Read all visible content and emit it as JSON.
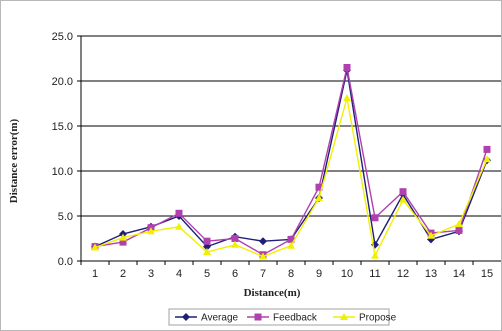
{
  "chart_data": {
    "type": "line",
    "title": "",
    "xlabel": "Distance(m)",
    "ylabel": "Distance error(m)",
    "categories": [
      "1",
      "2",
      "3",
      "4",
      "5",
      "6",
      "7",
      "8",
      "9",
      "10",
      "11",
      "12",
      "13",
      "14",
      "15"
    ],
    "ylim": [
      0,
      25
    ],
    "yticks": [
      "0.0",
      "5.0",
      "10.0",
      "15.0",
      "20.0",
      "25.0"
    ],
    "grid": "horizontal",
    "legend_position": "bottom",
    "series": [
      {
        "name": "Average",
        "marker": "diamond",
        "color": "#1f1f7a",
        "values": [
          1.6,
          3.0,
          3.8,
          5.0,
          1.6,
          2.7,
          2.2,
          2.4,
          7.0,
          21.2,
          1.8,
          7.4,
          2.4,
          3.3,
          11.2
        ]
      },
      {
        "name": "Feedback",
        "marker": "square",
        "color": "#b040b0",
        "values": [
          1.6,
          2.1,
          3.7,
          5.3,
          2.2,
          2.5,
          0.7,
          2.4,
          8.2,
          21.5,
          4.8,
          7.7,
          3.1,
          3.4,
          12.4
        ]
      },
      {
        "name": "Propose",
        "marker": "triangle",
        "color": "#f0f000",
        "values": [
          1.5,
          2.6,
          3.3,
          3.8,
          1.0,
          1.8,
          0.5,
          1.7,
          7.0,
          18.1,
          0.6,
          6.8,
          2.8,
          4.1,
          11.3
        ]
      }
    ]
  }
}
